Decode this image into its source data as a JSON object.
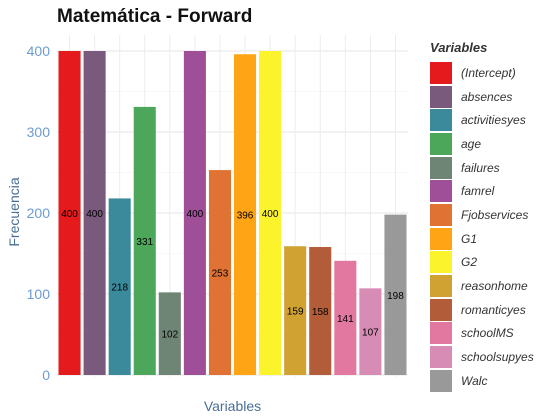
{
  "chart_data": {
    "type": "bar",
    "title": "Matemática - Forward",
    "xlabel": "Variables",
    "ylabel": "Frecuencia",
    "ylim": [
      0,
      400
    ],
    "yticks": [
      0,
      100,
      200,
      300,
      400
    ],
    "grid": true,
    "legend_title": "Variables",
    "legend_position": "right",
    "categories": [
      "(Intercept)",
      "absences",
      "activitiesyes",
      "age",
      "failures",
      "famrel",
      "Fjobservices",
      "G1",
      "G2",
      "reasonhome",
      "romanticyes",
      "schoolMS",
      "schoolsupyes",
      "Walc"
    ],
    "values": [
      400,
      400,
      218,
      331,
      102,
      400,
      253,
      396,
      400,
      159,
      158,
      141,
      107,
      198
    ],
    "colors": [
      "#e41a1c",
      "#7a5a7c",
      "#3a8a9c",
      "#4da75a",
      "#6e8474",
      "#9e4f98",
      "#e07234",
      "#ffa414",
      "#fbf32c",
      "#d0a232",
      "#b25c3a",
      "#e278a0",
      "#d68cb4",
      "#999999"
    ]
  }
}
